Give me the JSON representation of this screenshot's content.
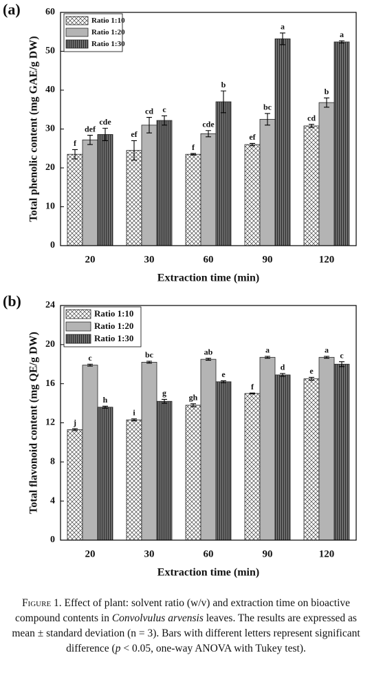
{
  "chart_data": [
    {
      "type": "bar",
      "panel_label": "(a)",
      "x_label": "Extraction time (min)",
      "y_label": "Total phenolic content (mg GAE/g DW)",
      "categories": [
        "20",
        "30",
        "60",
        "90",
        "120"
      ],
      "ylim": [
        0,
        60
      ],
      "yticks": [
        0,
        10,
        20,
        30,
        40,
        50,
        60
      ],
      "legend": "upper left",
      "series": [
        {
          "name": "Ratio 1:10",
          "color": "#ffffff",
          "hatch": "cross",
          "values": [
            23.5,
            24.5,
            23.5,
            26,
            30.8
          ],
          "errors": [
            1.2,
            2.5,
            0.2,
            0.3,
            0.4
          ],
          "labels": [
            "f",
            "ef",
            "f",
            "ef",
            "cd"
          ]
        },
        {
          "name": "Ratio 1:20",
          "color": "#b4b4b4",
          "hatch": "none",
          "values": [
            27.2,
            31,
            28.8,
            32.5,
            36.8
          ],
          "errors": [
            1.2,
            2,
            0.8,
            1.5,
            1.2
          ],
          "labels": [
            "def",
            "cd",
            "cde",
            "bc",
            "b"
          ]
        },
        {
          "name": "Ratio 1:30",
          "color": "#6e6e6e",
          "hatch": "vertical",
          "values": [
            28.6,
            32.2,
            37,
            53.2,
            52.4
          ],
          "errors": [
            1.6,
            1.2,
            2.8,
            1.5,
            0.3
          ],
          "labels": [
            "cde",
            "c",
            "b",
            "a",
            "a"
          ]
        }
      ]
    },
    {
      "type": "bar",
      "panel_label": "(b)",
      "x_label": "Extraction time (min)",
      "y_label": "Total flavonoid content (mg QE/g DW)",
      "categories": [
        "20",
        "30",
        "60",
        "90",
        "120"
      ],
      "ylim": [
        0,
        24
      ],
      "yticks": [
        0,
        4,
        8,
        12,
        16,
        20,
        24
      ],
      "legend": "upper left",
      "series": [
        {
          "name": "Ratio 1:10",
          "color": "#ffffff",
          "hatch": "cross",
          "values": [
            11.3,
            12.3,
            13.8,
            15,
            16.5
          ],
          "errors": [
            0.1,
            0.1,
            0.15,
            0.05,
            0.15
          ],
          "labels": [
            "j",
            "i",
            "gh",
            "f",
            "e"
          ]
        },
        {
          "name": "Ratio 1:20",
          "color": "#b4b4b4",
          "hatch": "none",
          "values": [
            17.9,
            18.2,
            18.5,
            18.7,
            18.7
          ],
          "errors": [
            0.1,
            0.1,
            0.1,
            0.1,
            0.1
          ],
          "labels": [
            "c",
            "bc",
            "ab",
            "a",
            "a"
          ]
        },
        {
          "name": "Ratio 1:30",
          "color": "#6e6e6e",
          "hatch": "vertical",
          "values": [
            13.6,
            14.2,
            16.2,
            16.9,
            18
          ],
          "errors": [
            0.1,
            0.2,
            0.1,
            0.15,
            0.25
          ],
          "labels": [
            "h",
            "g",
            "e",
            "d",
            "c"
          ]
        }
      ]
    }
  ],
  "caption": {
    "label": "Figure 1.",
    "parts": [
      {
        "text": " Effect of plant: solvent ratio (w/v) and extraction time on bioactive compound contents in "
      },
      {
        "text": "Convolvulus arvensis",
        "italic": true
      },
      {
        "text": " leaves. The results are expressed as mean ± standard deviation (n = 3). Bars with different letters represent significant difference ("
      },
      {
        "text": "p",
        "italic": true
      },
      {
        "text": " < 0.05, one-way ANOVA with Tukey test)."
      }
    ]
  }
}
